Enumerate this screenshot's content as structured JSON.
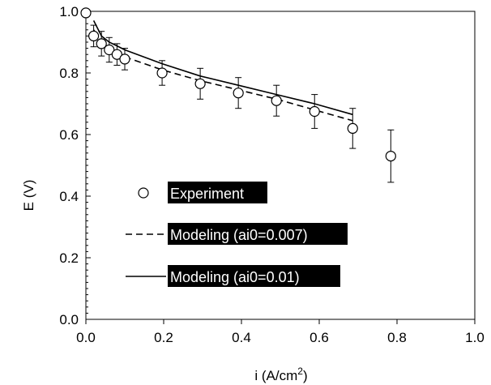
{
  "chart_data": {
    "type": "scatter",
    "title": "",
    "xlabel": "i (A/cm",
    "xlabel_sup": "2",
    "xlabel_end": ")",
    "ylabel": "E (V)",
    "xlim": [
      0.0,
      1.0
    ],
    "ylim": [
      0.0,
      1.0
    ],
    "x_ticks": [
      "0.0",
      "0.2",
      "0.4",
      "0.6",
      "0.8",
      "1.0"
    ],
    "y_ticks": [
      "0.0",
      "0.2",
      "0.4",
      "0.6",
      "0.8",
      "1.0"
    ],
    "grid": false,
    "legend_placement": "center-left",
    "series": [
      {
        "name": "Experiment",
        "style": "open-circle-markers-with-error-bars",
        "x": [
          0.0,
          0.02,
          0.04,
          0.06,
          0.08,
          0.1,
          0.196,
          0.294,
          0.392,
          0.49,
          0.588,
          0.686,
          0.784
        ],
        "y": [
          0.995,
          0.92,
          0.895,
          0.875,
          0.86,
          0.845,
          0.8,
          0.765,
          0.735,
          0.71,
          0.675,
          0.62,
          0.53
        ],
        "error": [
          0.0,
          0.035,
          0.04,
          0.04,
          0.035,
          0.035,
          0.04,
          0.05,
          0.05,
          0.05,
          0.055,
          0.065,
          0.085
        ]
      },
      {
        "name": "Modeling (ai0=0.007)",
        "style": "dashed-line",
        "x": [
          0.02,
          0.04,
          0.06,
          0.08,
          0.1,
          0.196,
          0.294,
          0.392,
          0.49,
          0.588,
          0.686
        ],
        "y": [
          0.94,
          0.9,
          0.88,
          0.865,
          0.852,
          0.81,
          0.775,
          0.745,
          0.715,
          0.68,
          0.645
        ]
      },
      {
        "name": "Modeling (ai0=0.01)",
        "style": "solid-line",
        "x": [
          0.02,
          0.04,
          0.06,
          0.08,
          0.1,
          0.196,
          0.294,
          0.392,
          0.49,
          0.588,
          0.686
        ],
        "y": [
          0.97,
          0.92,
          0.9,
          0.888,
          0.875,
          0.83,
          0.79,
          0.76,
          0.73,
          0.7,
          0.665
        ]
      }
    ],
    "colors": {
      "marker": "#000000",
      "line": "#000000",
      "legend_bg": "#000000",
      "legend_text": "#ffffff"
    }
  }
}
